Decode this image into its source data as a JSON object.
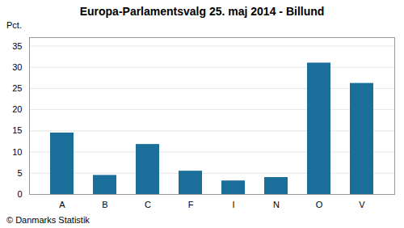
{
  "chart_data": {
    "type": "bar",
    "title": "Europa-Parlamentsvalg 25. maj 2014 - Billund",
    "ylabel": "Pct.",
    "caption": "© Danmarks Statistik",
    "categories": [
      "A",
      "B",
      "C",
      "F",
      "I",
      "N",
      "O",
      "V"
    ],
    "values": [
      14.5,
      4.5,
      11.8,
      5.5,
      3.2,
      4.0,
      31.0,
      26.2
    ],
    "color": "#1a6e9a",
    "ylim": [
      0,
      37
    ],
    "yticks": [
      0,
      5,
      10,
      15,
      20,
      25,
      30,
      35
    ],
    "grid": true
  }
}
